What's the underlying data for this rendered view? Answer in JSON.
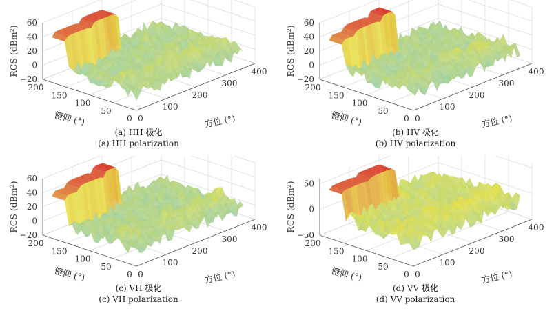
{
  "chart_data": [
    {
      "type": "surface3d",
      "id": "a",
      "caption_cn": "(a) HH 极化",
      "caption_en": "(a) HH polarization",
      "zlabel": "RCS (dBm²)",
      "xlabel": "方位 (°)",
      "ylabel": "俯仰 (°)",
      "xlim": [
        0,
        400
      ],
      "ylim": [
        0,
        200
      ],
      "zlim": [
        -20,
        60
      ],
      "xticks": [
        0,
        100,
        200,
        300,
        400
      ],
      "yticks": [
        0,
        50,
        100,
        150,
        200
      ],
      "zticks": [
        -20,
        0,
        20,
        40,
        60
      ],
      "peaks": [
        {
          "az_start": 0,
          "az_end": 90,
          "rcs": 50
        },
        {
          "az_start": 90,
          "az_end": 180,
          "rcs": 55
        }
      ],
      "floor_rcs_range": [
        -20,
        20
      ]
    },
    {
      "type": "surface3d",
      "id": "b",
      "caption_cn": "(b) HV 极化",
      "caption_en": "(b) HV polarization",
      "zlabel": "RCS (dBm²)",
      "xlabel": "方位 (°)",
      "ylabel": "俯仰 (°)",
      "xlim": [
        0,
        400
      ],
      "ylim": [
        0,
        200
      ],
      "zlim": [
        -20,
        60
      ],
      "xticks": [
        0,
        100,
        200,
        300,
        400
      ],
      "yticks": [
        0,
        50,
        100,
        150,
        200
      ],
      "zticks": [
        -20,
        0,
        20,
        40,
        60
      ],
      "peaks": [
        {
          "az_start": 0,
          "az_end": 45,
          "rcs": 45
        },
        {
          "az_start": 45,
          "az_end": 135,
          "rcs": 52
        },
        {
          "az_start": 135,
          "az_end": 180,
          "rcs": 58
        }
      ],
      "floor_rcs_range": [
        -20,
        20
      ]
    },
    {
      "type": "surface3d",
      "id": "c",
      "caption_cn": "(c) VH 极化",
      "caption_en": "(c) VH polarization",
      "zlabel": "RCS (dBm²)",
      "xlabel": "方位 (°)",
      "ylabel": "俯仰 (°)",
      "xlim": [
        0,
        400
      ],
      "ylim": [
        0,
        200
      ],
      "zlim": [
        -20,
        60
      ],
      "xticks": [
        0,
        100,
        200,
        300,
        400
      ],
      "yticks": [
        0,
        50,
        100,
        150,
        200
      ],
      "zticks": [
        -20,
        0,
        20,
        40,
        60
      ],
      "peaks": [
        {
          "az_start": 0,
          "az_end": 45,
          "rcs": 45
        },
        {
          "az_start": 45,
          "az_end": 135,
          "rcs": 52
        },
        {
          "az_start": 135,
          "az_end": 180,
          "rcs": 58
        }
      ],
      "floor_rcs_range": [
        -20,
        20
      ]
    },
    {
      "type": "surface3d",
      "id": "d",
      "caption_cn": "(d) VV 极化",
      "caption_en": "(d) VV polarization",
      "zlabel": "RCS (dBm²)",
      "xlabel": "方位 (°)",
      "ylabel": "俯仰 (°)",
      "xlim": [
        0,
        400
      ],
      "ylim": [
        0,
        200
      ],
      "zlim": [
        -50,
        60
      ],
      "xticks": [
        0,
        100,
        200,
        300,
        400
      ],
      "yticks": [
        0,
        50,
        100,
        150,
        200
      ],
      "zticks": [
        -50,
        0,
        50
      ],
      "peaks": [
        {
          "az_start": 0,
          "az_end": 90,
          "rcs": 50
        },
        {
          "az_start": 90,
          "az_end": 180,
          "rcs": 55
        }
      ],
      "floor_rcs_range": [
        -40,
        20
      ]
    }
  ],
  "colors": {
    "high": "#d7302a",
    "mid": "#e8e04a",
    "low": "#6cc4e0",
    "grid": "#d8d8d8",
    "axis": "#555555"
  }
}
